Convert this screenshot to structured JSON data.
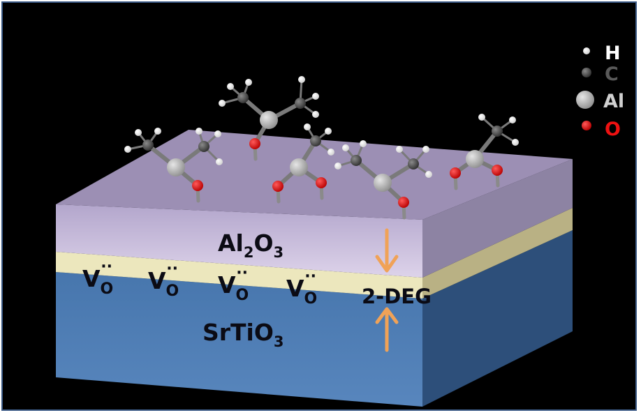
{
  "colors": {
    "background": "#000000",
    "frame": "#3b5a86",
    "al2o3_front": "#d9cfe6",
    "al2o3_top": "#a99bc3",
    "interface": "#ece7bd",
    "srtio3_front": "#4f7bb0",
    "arrow": "#f0a257",
    "atom_h": "#ffffff",
    "atom_c": "#555555",
    "atom_al": "#bdbdbd",
    "atom_o": "#ee1111"
  },
  "legend": [
    {
      "symbol": "H",
      "icon": "hydrogen-atom-icon",
      "color": "#ffffff"
    },
    {
      "symbol": "C",
      "icon": "carbon-atom-icon",
      "color": "#555555"
    },
    {
      "symbol": "Al",
      "icon": "aluminum-atom-icon",
      "color": "#bdbdbd"
    },
    {
      "symbol": "O",
      "icon": "oxygen-atom-icon",
      "color": "#ee1111"
    }
  ],
  "layers": {
    "al2o3": {
      "base": "Al",
      "sub1": "2",
      "mid": "O",
      "sub2": "3"
    },
    "srtio3": {
      "base": "SrTiO",
      "sub": "3"
    }
  },
  "vacancies": [
    {
      "base": "V",
      "sub": "O",
      "sup": "··"
    },
    {
      "base": "V",
      "sub": "O",
      "sup": "··"
    },
    {
      "base": "V",
      "sub": "O",
      "sup": "··"
    },
    {
      "base": "V",
      "sub": "O",
      "sup": "··"
    }
  ],
  "deg_label": "2-DEG"
}
